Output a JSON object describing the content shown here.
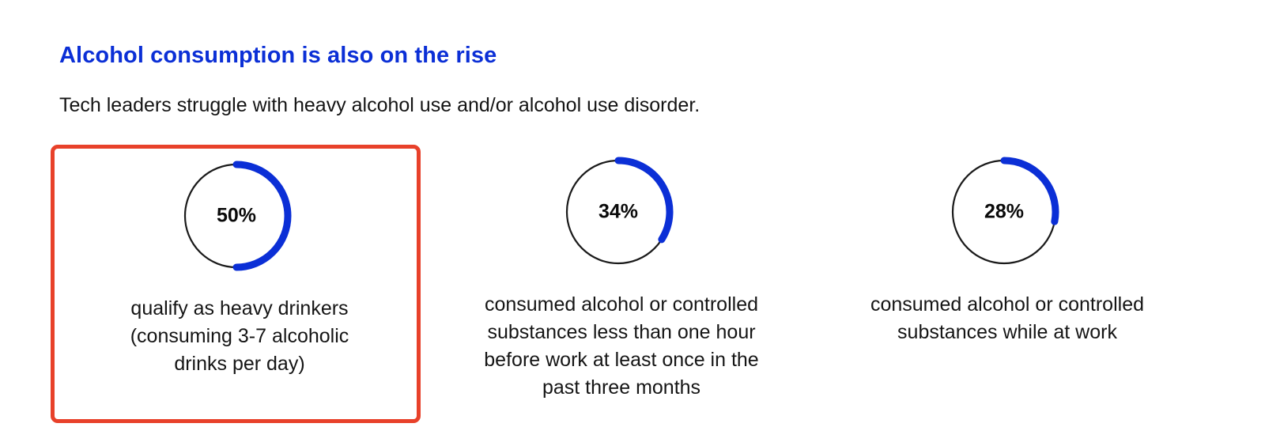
{
  "header": {
    "title": "Alcohol consumption is also on the rise",
    "subtitle": "Tech leaders struggle with heavy alcohol use and/or alcohol use disorder."
  },
  "colors": {
    "title": "#0b2fd6",
    "arc": "#0b2fd6",
    "ring": "#1a1a1a",
    "highlight_border": "#e8412a"
  },
  "chart_data": [
    {
      "type": "pie",
      "value": 50,
      "label": "50%",
      "description_lines": [
        "qualify as heavy drinkers",
        "(consuming 3-7 alcoholic",
        "drinks per day)"
      ],
      "highlighted": true
    },
    {
      "type": "pie",
      "value": 34,
      "label": "34%",
      "description_lines": [
        "consumed alcohol or controlled",
        "substances less than one hour",
        "before work at least once in the",
        "past three months"
      ],
      "highlighted": false
    },
    {
      "type": "pie",
      "value": 28,
      "label": "28%",
      "description_lines": [
        "consumed alcohol or controlled",
        "substances while at work"
      ],
      "highlighted": false
    }
  ]
}
